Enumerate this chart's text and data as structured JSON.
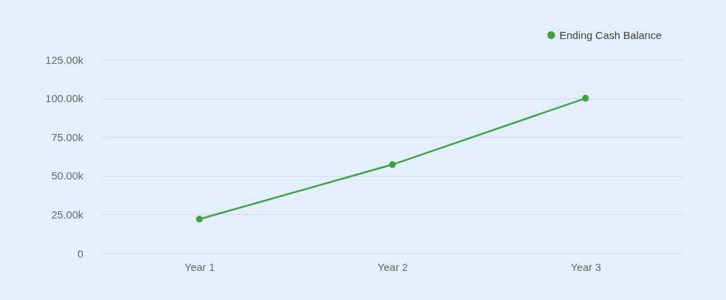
{
  "chart_data": {
    "type": "line",
    "categories": [
      "Year 1",
      "Year 2",
      "Year 3"
    ],
    "series": [
      {
        "name": "Ending Cash Balance",
        "color": "#43a047",
        "values": [
          22,
          57.2,
          100
        ]
      }
    ],
    "ylim": [
      0,
      125
    ],
    "yticks": [
      {
        "value": 0,
        "label": "0"
      },
      {
        "value": 25,
        "label": "25.00k"
      },
      {
        "value": 50,
        "label": "50.00k"
      },
      {
        "value": 75,
        "label": "75.00k"
      },
      {
        "value": 100,
        "label": "100.00k"
      },
      {
        "value": 125,
        "label": "125.00k"
      }
    ],
    "grid": "y",
    "legend": "top right",
    "marker": "circle"
  }
}
